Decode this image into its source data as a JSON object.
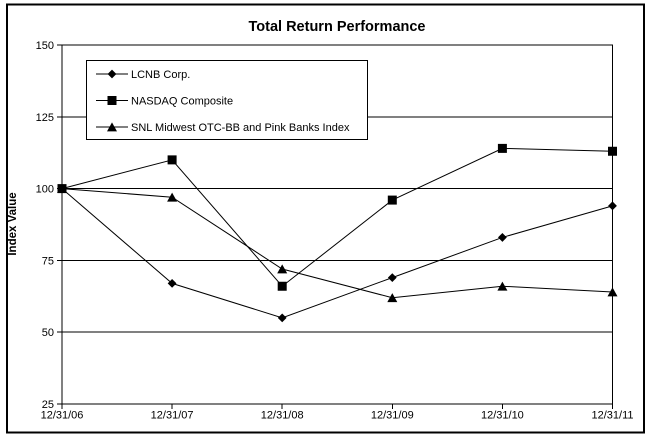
{
  "chart_data": {
    "type": "line",
    "title": "Total Return Performance",
    "xlabel": "",
    "ylabel": "Index Value",
    "categories": [
      "12/31/06",
      "12/31/07",
      "12/31/08",
      "12/31/09",
      "12/31/10",
      "12/31/11"
    ],
    "series": [
      {
        "name": "LCNB Corp.",
        "marker": "diamond",
        "color": "#000000",
        "values": [
          100,
          67,
          55,
          69,
          83,
          94
        ]
      },
      {
        "name": "NASDAQ Composite",
        "marker": "square",
        "color": "#000000",
        "values": [
          100,
          110,
          66,
          96,
          114,
          113
        ]
      },
      {
        "name": "SNL Midwest OTC-BB and Pink Banks Index",
        "marker": "triangle",
        "color": "#000000",
        "values": [
          100,
          97,
          72,
          62,
          66,
          64
        ]
      }
    ],
    "ylim": [
      25,
      150
    ],
    "yticks": [
      150,
      125,
      100,
      75,
      50,
      25
    ],
    "grid": "horizontal",
    "legend_position": "top-left-inside",
    "colors": {
      "line": "#000000",
      "axis": "#000000",
      "gridline": "#000000",
      "background": "#ffffff",
      "text": "#000000"
    }
  }
}
